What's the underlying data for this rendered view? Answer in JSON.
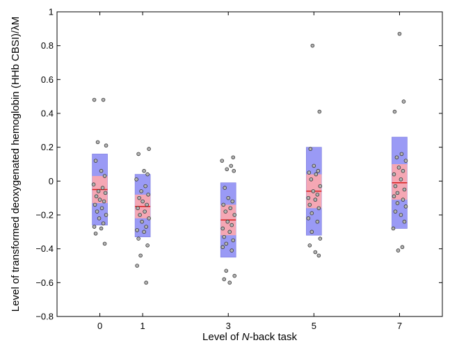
{
  "chart_data": {
    "type": "scatter",
    "title": "",
    "xlabel_parts": [
      "Level of ",
      "N",
      "-back task"
    ],
    "ylabel": "Level of transformed deoxygenated hemoglobin (HHb CBSI)/λM",
    "xlim": [
      -1,
      8
    ],
    "ylim": [
      -0.8,
      1
    ],
    "x_ticks": [
      0,
      1,
      3,
      5,
      7
    ],
    "x_tick_labels": [
      "0",
      "1",
      "3",
      "5",
      "7"
    ],
    "y_ticks": [
      -0.8,
      -0.6,
      -0.4,
      -0.2,
      0,
      0.2,
      0.4,
      0.6,
      0.8,
      1
    ],
    "y_tick_labels": [
      "−0.8",
      "−0.6",
      "−0.4",
      "−0.2",
      "0",
      "0.2",
      "0.4",
      "0.6",
      "0.8",
      "1"
    ],
    "grid": false,
    "colors": {
      "sd_box": "#9a9af5",
      "ci_box": "#f5a7b4",
      "mean_line": "#d81e1e",
      "point_fill": "#b3b3b3",
      "point_edge": "#333333"
    },
    "groups": [
      {
        "x": 0,
        "mean": -0.05,
        "sd_low": -0.26,
        "sd_high": 0.16,
        "ci_low": -0.13,
        "ci_high": 0.03,
        "points": [
          0.48,
          0.48,
          0.23,
          0.21,
          0.12,
          0.06,
          0.03,
          -0.02,
          -0.04,
          -0.06,
          -0.07,
          -0.09,
          -0.11,
          -0.12,
          -0.14,
          -0.16,
          -0.18,
          -0.2,
          -0.22,
          -0.25,
          -0.27,
          -0.28,
          -0.31,
          -0.37
        ]
      },
      {
        "x": 1,
        "mean": -0.15,
        "sd_low": -0.33,
        "sd_high": 0.04,
        "ci_low": -0.22,
        "ci_high": -0.08,
        "points": [
          0.19,
          0.16,
          0.06,
          0.04,
          0.01,
          -0.03,
          -0.06,
          -0.08,
          -0.1,
          -0.12,
          -0.14,
          -0.16,
          -0.18,
          -0.2,
          -0.22,
          -0.24,
          -0.27,
          -0.29,
          -0.3,
          -0.34,
          -0.38,
          -0.44,
          -0.5,
          -0.6
        ]
      },
      {
        "x": 3,
        "mean": -0.23,
        "sd_low": -0.45,
        "sd_high": -0.01,
        "ci_low": -0.32,
        "ci_high": -0.14,
        "points": [
          0.14,
          0.12,
          0.09,
          0.07,
          0.06,
          -0.04,
          -0.1,
          -0.12,
          -0.14,
          -0.16,
          -0.18,
          -0.2,
          -0.24,
          -0.26,
          -0.28,
          -0.3,
          -0.33,
          -0.35,
          -0.37,
          -0.39,
          -0.41,
          -0.53,
          -0.56,
          -0.58,
          -0.6
        ]
      },
      {
        "x": 5,
        "mean": -0.06,
        "sd_low": -0.32,
        "sd_high": 0.2,
        "ci_low": -0.16,
        "ci_high": 0.04,
        "points": [
          0.8,
          0.41,
          0.19,
          0.09,
          0.06,
          0.05,
          0.04,
          0.01,
          -0.03,
          -0.06,
          -0.08,
          -0.1,
          -0.11,
          -0.14,
          -0.16,
          -0.19,
          -0.22,
          -0.24,
          -0.3,
          -0.34,
          -0.38,
          -0.42,
          -0.44
        ]
      },
      {
        "x": 7,
        "mean": -0.01,
        "sd_low": -0.28,
        "sd_high": 0.26,
        "ci_low": -0.11,
        "ci_high": 0.1,
        "points": [
          0.87,
          0.47,
          0.41,
          0.16,
          0.14,
          0.12,
          0.08,
          0.06,
          0.04,
          0.01,
          -0.03,
          -0.05,
          -0.07,
          -0.09,
          -0.11,
          -0.13,
          -0.15,
          -0.18,
          -0.2,
          -0.24,
          -0.28,
          -0.39,
          -0.41
        ]
      }
    ]
  }
}
